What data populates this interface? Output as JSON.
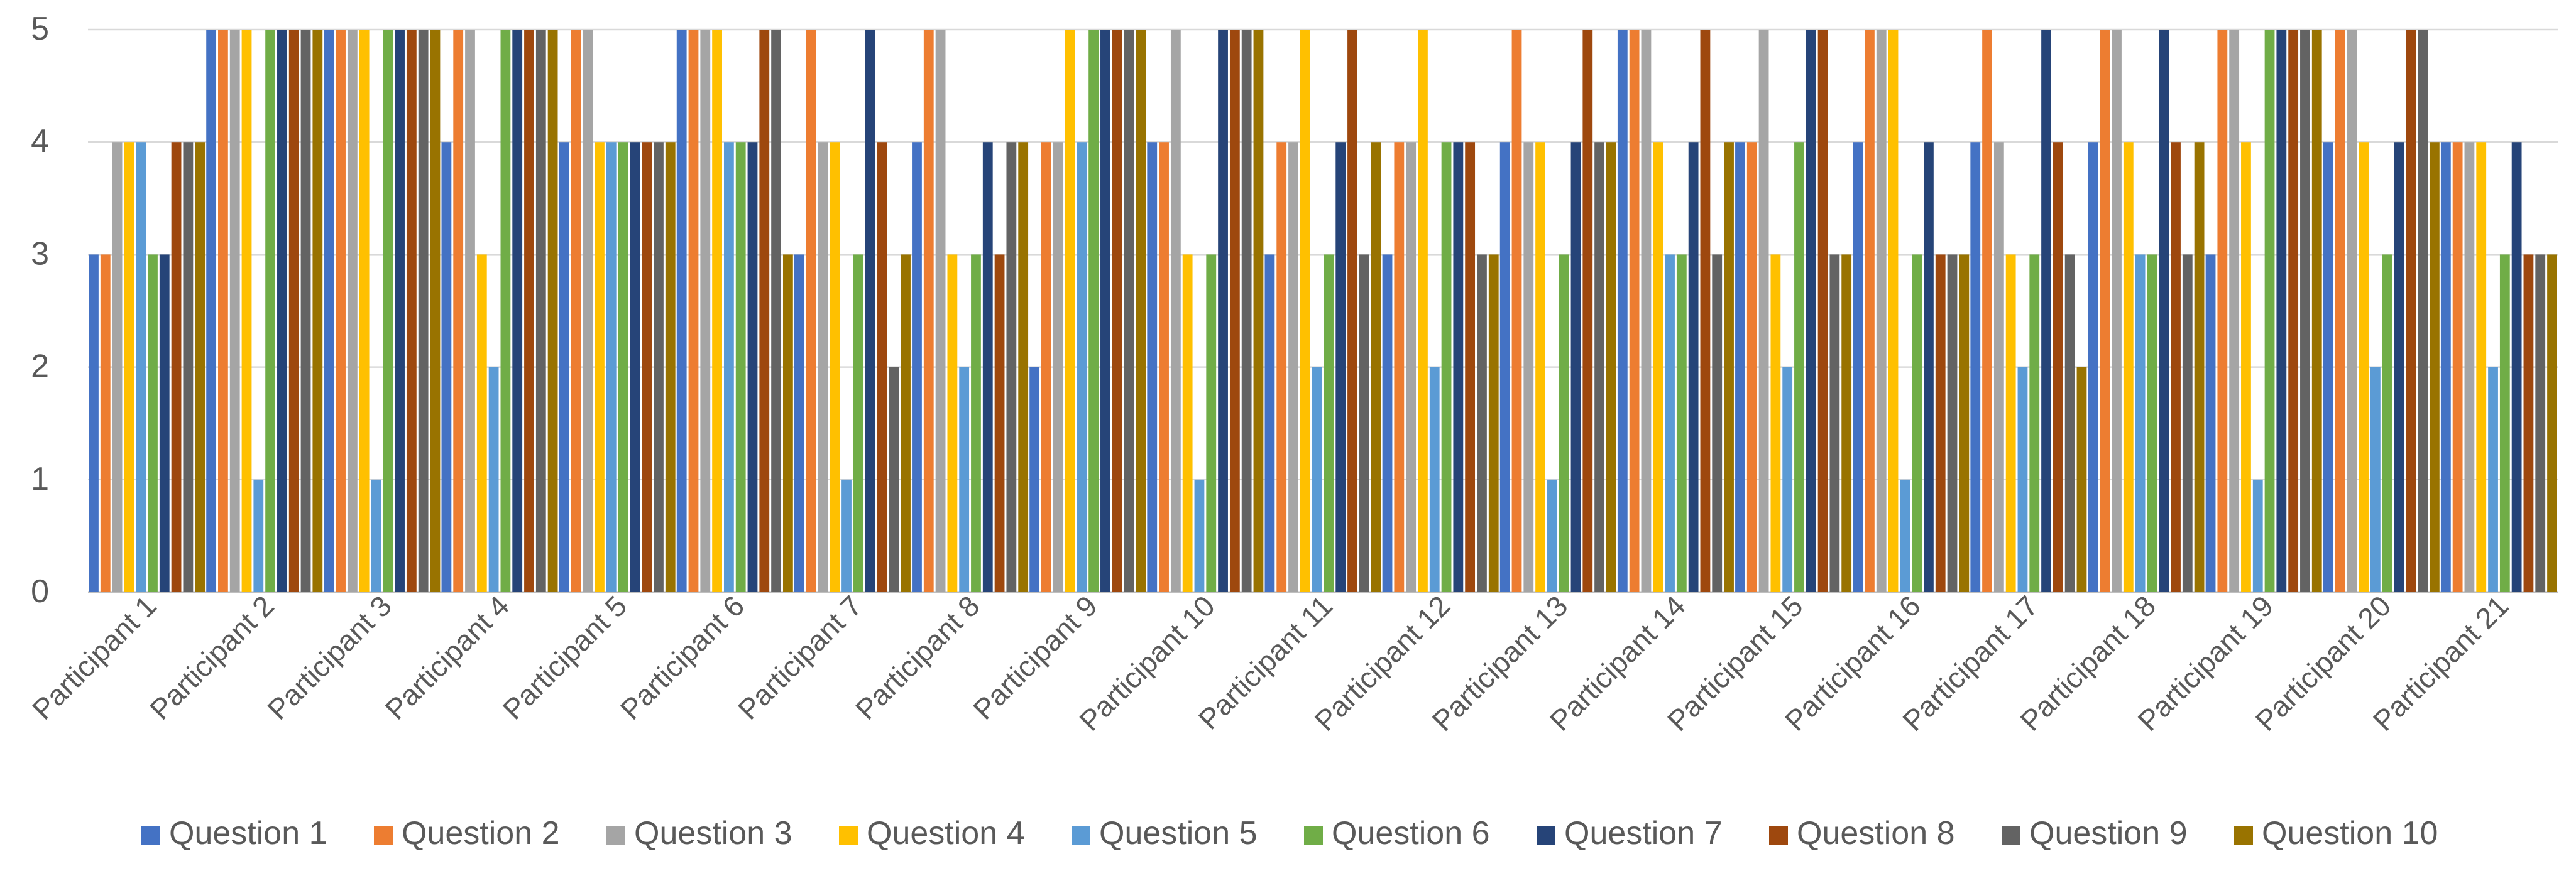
{
  "chart_data": {
    "type": "bar",
    "title": "",
    "xlabel": "",
    "ylabel": "",
    "ylim": [
      0,
      5
    ],
    "yticks": [
      0,
      1,
      2,
      3,
      4,
      5
    ],
    "grid": true,
    "legend_position": "bottom",
    "categories": [
      "Participant 1",
      "Participant 2",
      "Participant 3",
      "Participant 4",
      "Participant 5",
      "Participant 6",
      "Participant 7",
      "Participant 8",
      "Participant 9",
      "Participant 10",
      "Participant 11",
      "Participant 12",
      "Participant 13",
      "Participant 14",
      "Participant 15",
      "Participant 16",
      "Participant 17",
      "Participant 18",
      "Participant 19",
      "Participant 20",
      "Participant 21"
    ],
    "series": [
      {
        "name": "Question 1",
        "color": "#4472C4",
        "values": [
          3,
          5,
          5,
          4,
          4,
          5,
          3,
          4,
          2,
          4,
          3,
          3,
          4,
          5,
          4,
          4,
          4,
          4,
          3,
          4,
          4
        ]
      },
      {
        "name": "Question 2",
        "color": "#ED7D31",
        "values": [
          3,
          5,
          5,
          5,
          5,
          5,
          5,
          5,
          4,
          4,
          4,
          4,
          5,
          5,
          4,
          5,
          5,
          5,
          5,
          5,
          4
        ]
      },
      {
        "name": "Question 3",
        "color": "#A5A5A5",
        "values": [
          4,
          5,
          5,
          5,
          5,
          5,
          4,
          5,
          4,
          5,
          4,
          4,
          4,
          5,
          5,
          5,
          4,
          5,
          5,
          5,
          4
        ]
      },
      {
        "name": "Question 4",
        "color": "#FFC000",
        "values": [
          4,
          5,
          5,
          3,
          4,
          5,
          4,
          3,
          5,
          3,
          5,
          5,
          4,
          4,
          3,
          5,
          3,
          4,
          4,
          4,
          4
        ]
      },
      {
        "name": "Question 5",
        "color": "#5B9BD5",
        "values": [
          4,
          1,
          1,
          2,
          4,
          4,
          1,
          2,
          4,
          1,
          2,
          2,
          1,
          3,
          2,
          1,
          2,
          3,
          1,
          2,
          2
        ]
      },
      {
        "name": "Question 6",
        "color": "#70AD47",
        "values": [
          3,
          5,
          5,
          5,
          4,
          4,
          3,
          3,
          5,
          3,
          3,
          4,
          3,
          3,
          4,
          3,
          3,
          3,
          5,
          3,
          3
        ]
      },
      {
        "name": "Question 7",
        "color": "#264478",
        "values": [
          3,
          5,
          5,
          5,
          4,
          4,
          5,
          4,
          5,
          5,
          4,
          4,
          4,
          4,
          5,
          4,
          5,
          5,
          5,
          4,
          4
        ]
      },
      {
        "name": "Question 8",
        "color": "#9E480E",
        "values": [
          4,
          5,
          5,
          5,
          4,
          5,
          4,
          3,
          5,
          5,
          5,
          4,
          5,
          5,
          5,
          3,
          4,
          4,
          5,
          5,
          3
        ]
      },
      {
        "name": "Question 9",
        "color": "#636363",
        "values": [
          4,
          5,
          5,
          5,
          4,
          5,
          2,
          4,
          5,
          5,
          3,
          3,
          4,
          3,
          3,
          3,
          3,
          3,
          5,
          5,
          3
        ]
      },
      {
        "name": "Question 10",
        "color": "#997300",
        "values": [
          4,
          5,
          5,
          5,
          4,
          3,
          3,
          4,
          5,
          5,
          4,
          3,
          4,
          4,
          3,
          3,
          2,
          4,
          5,
          4,
          3
        ]
      }
    ]
  }
}
